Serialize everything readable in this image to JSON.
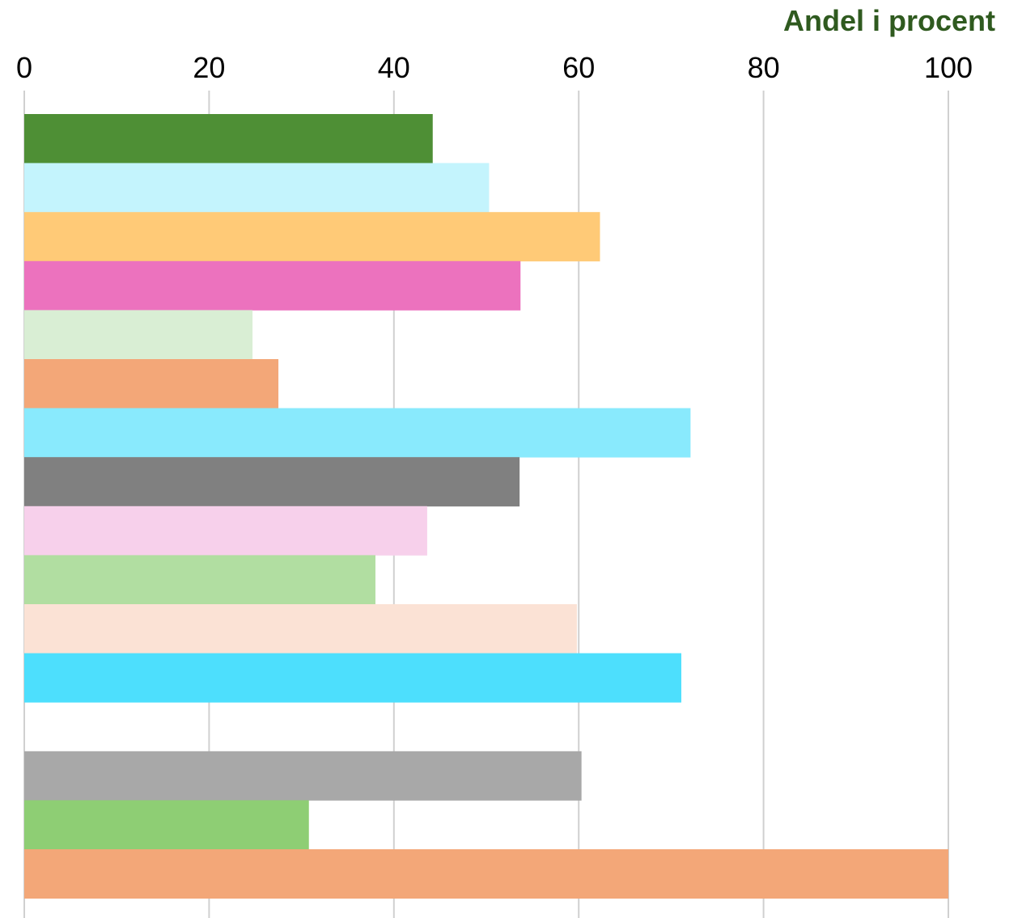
{
  "chart_data": {
    "type": "bar",
    "orientation": "horizontal",
    "xlabel": "Andel i procent",
    "xlabel_color": "#2f5a1f",
    "xlim": [
      0,
      100
    ],
    "x_ticks": [
      0,
      20,
      40,
      60,
      80,
      100
    ],
    "x_tick_labels": [
      "0",
      "20",
      "40",
      "60",
      "80",
      "100"
    ],
    "axis_position": "top",
    "grid": true,
    "legend": "none",
    "bars": [
      {
        "value": 44.2,
        "color": "#4e8f35"
      },
      {
        "value": 50.3,
        "color": "#c4f4fd"
      },
      {
        "value": 62.3,
        "color": "#ffca77"
      },
      {
        "value": 53.7,
        "color": "#ec72be"
      },
      {
        "value": 24.7,
        "color": "#d9eed4"
      },
      {
        "value": 27.5,
        "color": "#f3a778"
      },
      {
        "value": 72.1,
        "color": "#89eafd"
      },
      {
        "value": 53.6,
        "color": "#808080"
      },
      {
        "value": 43.6,
        "color": "#f7d0eb"
      },
      {
        "value": 38.0,
        "color": "#b1dea1"
      },
      {
        "value": 59.8,
        "color": "#fbe2d5"
      },
      {
        "value": 71.1,
        "color": "#4ddffd"
      },
      {
        "value": null,
        "color": ""
      },
      {
        "value": 60.3,
        "color": "#a8a8a8"
      },
      {
        "value": 30.8,
        "color": "#8ece74"
      },
      {
        "value": 100.0,
        "color": "#f3a778"
      }
    ]
  }
}
